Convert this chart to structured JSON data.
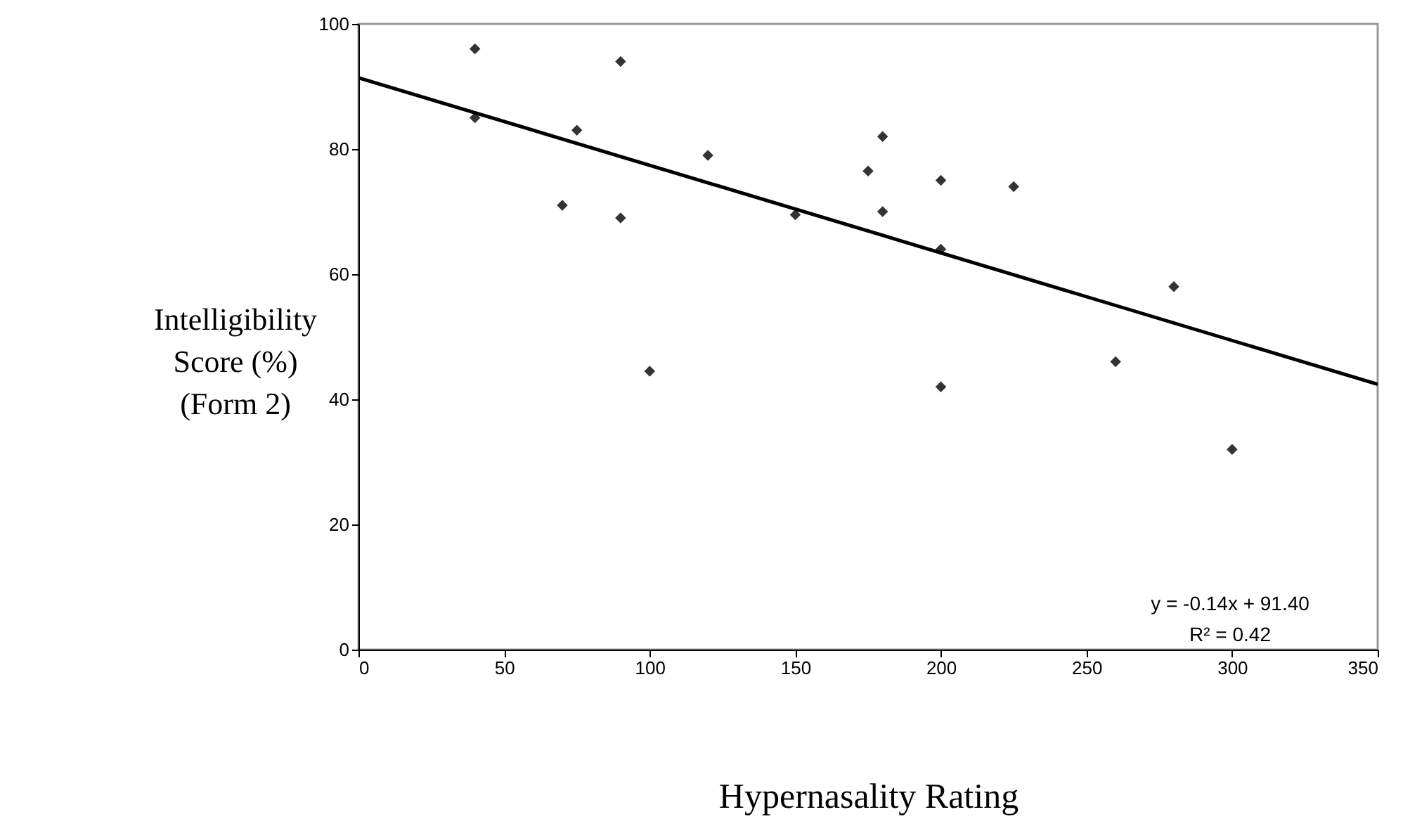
{
  "chart_data": {
    "type": "scatter",
    "xlabel": "Hypernasality Rating",
    "ylabel": "Intelligibility\nScore (%)\n(Form 2)",
    "xlim": [
      0,
      350
    ],
    "xticks": [
      0,
      50,
      100,
      150,
      200,
      250,
      300,
      350
    ],
    "ylim": [
      0,
      100
    ],
    "yticks": [
      0,
      20,
      40,
      60,
      80,
      100
    ],
    "grid": false,
    "marker": "diamond",
    "series": [
      {
        "color": "#333333",
        "x": [
          40,
          40,
          70,
          75,
          90,
          90,
          100,
          120,
          150,
          175,
          180,
          180,
          200,
          200,
          200,
          225,
          260,
          280,
          300
        ],
        "values": [
          96,
          85,
          71,
          83,
          94,
          69,
          44.5,
          79,
          69.5,
          76.5,
          82,
          70,
          75,
          64,
          42,
          74,
          46,
          58,
          32
        ]
      },
      {
        "type": "line",
        "color": "#000000",
        "x": [
          0,
          350
        ],
        "values": [
          91.4,
          42.4
        ],
        "marker": "none"
      }
    ],
    "annotations": [
      "y = -0.14x + 91.40",
      "R² = 0.42"
    ]
  }
}
